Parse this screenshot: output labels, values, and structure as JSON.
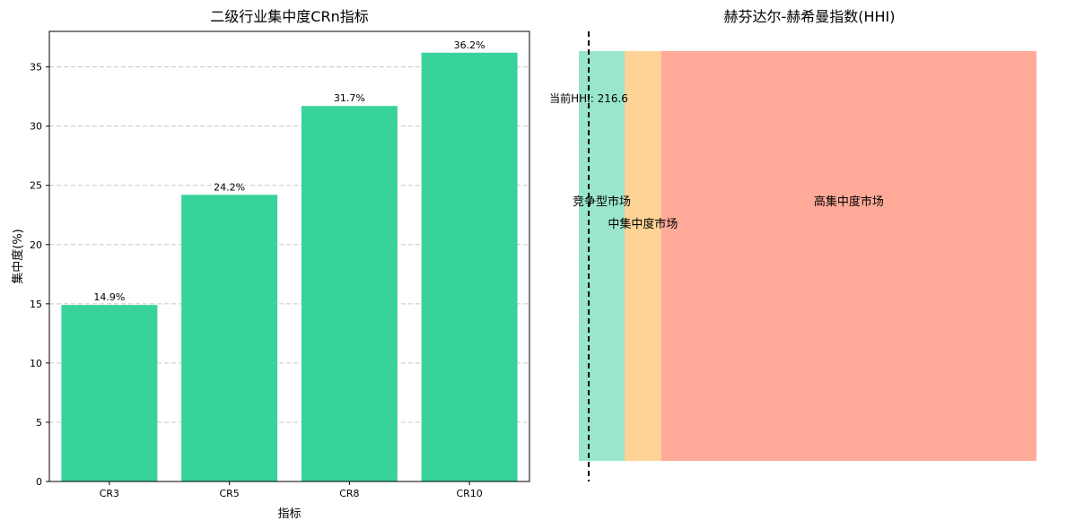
{
  "chart_data": [
    {
      "type": "bar",
      "title": "二级行业集中度CRn指标",
      "xlabel": "指标",
      "ylabel": "集中度(%)",
      "categories": [
        "CR3",
        "CR5",
        "CR8",
        "CR10"
      ],
      "values": [
        14.9,
        24.2,
        31.7,
        36.2
      ],
      "data_labels": [
        "14.9%",
        "24.2%",
        "31.7%",
        "36.2%"
      ],
      "ylim": [
        0,
        38
      ],
      "yticks": [
        0,
        5,
        10,
        15,
        20,
        25,
        30,
        35
      ],
      "grid": "y dashed",
      "color": "#37d39a"
    },
    {
      "type": "bar",
      "title": "赫芬达尔-赫希曼指数(HHI)",
      "regions": [
        {
          "label": "竞争型市场",
          "start": 0,
          "end": 1000,
          "color": "#9ae6cb"
        },
        {
          "label": "中集中度市场",
          "start": 1000,
          "end": 1800,
          "color": "#fdd396"
        },
        {
          "label": "高集中度市场",
          "start": 1800,
          "end": 10000,
          "color": "#ffa998"
        }
      ],
      "current_hhi": 216.6,
      "current_label": "当前HHI: 216.6",
      "xlim": [
        0,
        10000
      ]
    }
  ]
}
